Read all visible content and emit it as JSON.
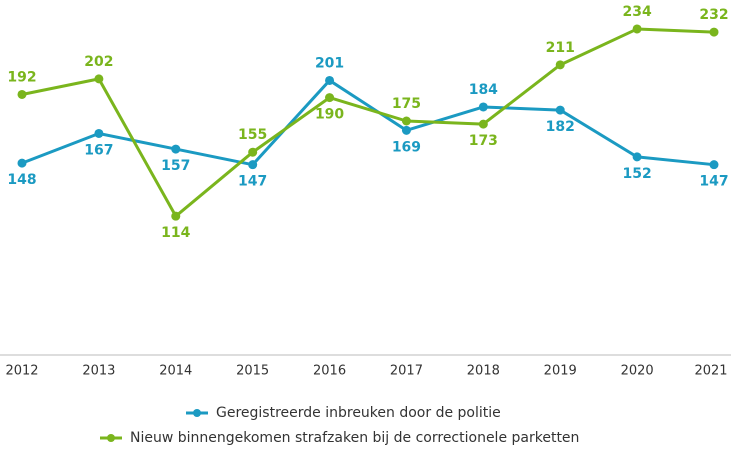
{
  "chart_data": {
    "type": "line",
    "categories": [
      "2012",
      "2013",
      "2014",
      "2015",
      "2016",
      "2017",
      "2018",
      "2019",
      "2020",
      "2021"
    ],
    "series": [
      {
        "name": "Geregistreerde inbreuken door de politie",
        "color": "#1b9ac2",
        "values": [
          148,
          167,
          157,
          147,
          201,
          169,
          184,
          182,
          152,
          147
        ]
      },
      {
        "name": "Nieuw binnengekomen strafzaken bij de correctionele parketten",
        "color": "#7ab51d",
        "values": [
          192,
          202,
          114,
          155,
          190,
          175,
          173,
          211,
          234,
          232
        ]
      }
    ],
    "ylim": [
      25,
      250
    ],
    "legend": "bottom"
  }
}
